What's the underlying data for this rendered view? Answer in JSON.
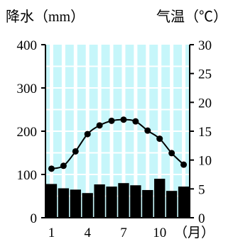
{
  "chart_data": {
    "type": "bar",
    "x_months": [
      1,
      2,
      3,
      4,
      5,
      6,
      7,
      8,
      9,
      10,
      11,
      12
    ],
    "x_tick_labels": [
      "1",
      "4",
      "7",
      "10"
    ],
    "x_unit_label": "（月）",
    "series": [
      {
        "type": "bar",
        "axis": "left",
        "values": [
          78,
          68,
          65,
          57,
          77,
          72,
          80,
          75,
          64,
          90,
          62,
          72
        ]
      },
      {
        "type": "line",
        "axis": "right",
        "values": [
          8.5,
          9,
          11.5,
          14.5,
          16,
          16.8,
          17,
          16.7,
          15.1,
          13.7,
          11.2,
          9.2
        ]
      }
    ],
    "left_axis": {
      "title": "降水（mm）",
      "ylim": [
        0,
        400
      ],
      "ticks": [
        0,
        100,
        200,
        300,
        400
      ]
    },
    "right_axis": {
      "title": "气温（℃）",
      "ylim": [
        0,
        30
      ],
      "ticks": [
        0,
        5,
        10,
        15,
        20,
        25,
        30
      ]
    },
    "grid": true,
    "colors": {
      "plot_background": "#c6f6fa",
      "grid": "#ffffff",
      "bars": "#000000",
      "line": "#000000"
    }
  }
}
